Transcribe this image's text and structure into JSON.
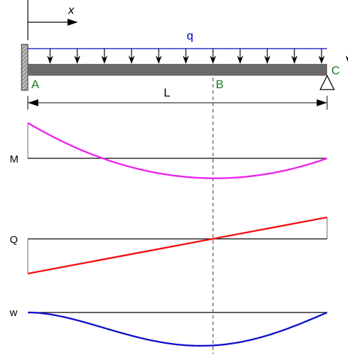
{
  "beam": {
    "x_axis_label": "x",
    "load_label": "q",
    "span_label": "L",
    "point_a": "A",
    "point_b": "B",
    "point_c": "C"
  },
  "diagrams": {
    "moment_label": "M",
    "shear_label": "Q",
    "deflection_label": "w"
  },
  "colors": {
    "load": "#0000cc",
    "points": "#1a7a1a",
    "moment": "#ee22ee",
    "shear": "#ee1111",
    "deflection": "#1111cc",
    "beam": "#6a6a6a"
  }
}
